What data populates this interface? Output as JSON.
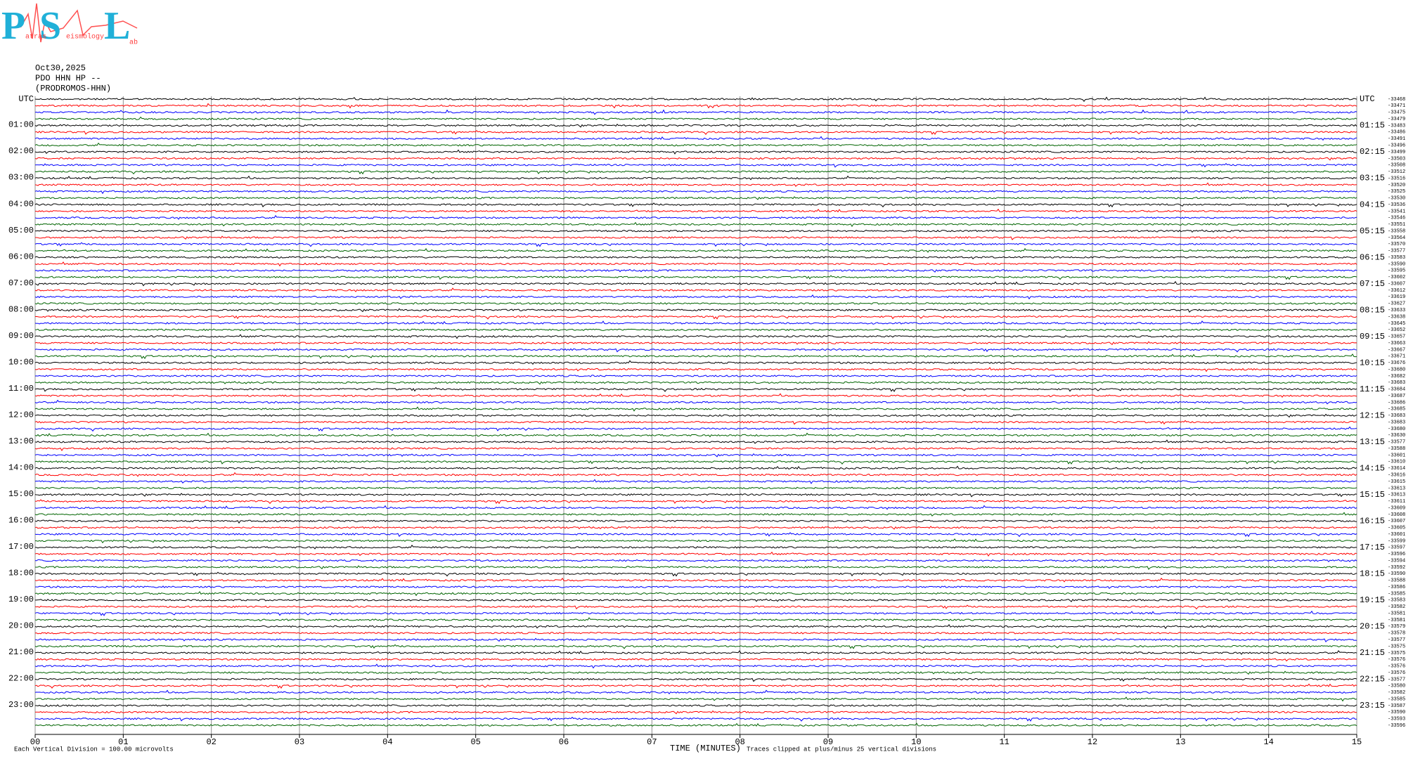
{
  "chart_data": {
    "type": "helicorder",
    "logo": {
      "letters": [
        "P",
        "S",
        "L"
      ],
      "words": [
        "atras",
        "eismology",
        "ab"
      ]
    },
    "header": [
      "Oct30,2025",
      "PDO HHN HP --",
      "(PRODROMOS-HHN)"
    ],
    "left_labels": [
      "UTC",
      "01:00",
      "02:00",
      "03:00",
      "04:00",
      "05:00",
      "06:00",
      "07:00",
      "08:00",
      "09:00",
      "10:00",
      "11:00",
      "12:00",
      "13:00",
      "14:00",
      "15:00",
      "16:00",
      "17:00",
      "18:00",
      "19:00",
      "20:00",
      "21:00",
      "22:00",
      "23:00"
    ],
    "right_labels": [
      "UTC",
      "01:15",
      "02:15",
      "03:15",
      "04:15",
      "05:15",
      "06:15",
      "07:15",
      "08:15",
      "09:15",
      "10:15",
      "11:15",
      "12:15",
      "13:15",
      "14:15",
      "15:15",
      "16:15",
      "17:15",
      "18:15",
      "19:15",
      "20:15",
      "21:15",
      "22:15",
      "23:15"
    ],
    "trace_offsets": [
      "-33468",
      "-33471",
      "-33475",
      "-33479",
      "-33483",
      "-33486",
      "-33491",
      "-33496",
      "-33499",
      "-33503",
      "-33508",
      "-33512",
      "-33516",
      "-33520",
      "-33525",
      "-33530",
      "-33536",
      "-33541",
      "-33546",
      "-33551",
      "-33558",
      "-33564",
      "-33570",
      "-33577",
      "-33583",
      "-33590",
      "-33595",
      "-33602",
      "-33607",
      "-33612",
      "-33619",
      "-33627",
      "-33633",
      "-33638",
      "-33645",
      "-33652",
      "-33657",
      "-33663",
      "-33667",
      "-33671",
      "-33676",
      "-33680",
      "-33682",
      "-33683",
      "-33684",
      "-33687",
      "-33686",
      "-33685",
      "-33683",
      "-33683",
      "-33680",
      "-33630",
      "-33577",
      "-33588",
      "-33601",
      "-33610",
      "-33614",
      "-33616",
      "-33615",
      "-33613",
      "-33613",
      "-33611",
      "-33609",
      "-33608",
      "-33607",
      "-33605",
      "-33601",
      "-33599",
      "-33597",
      "-33596",
      "-33594",
      "-33592",
      "-33590",
      "-33588",
      "-33586",
      "-33585",
      "-33583",
      "-33582",
      "-33581",
      "-33581",
      "-33579",
      "-33578",
      "-33577",
      "-33575",
      "-33575",
      "-33576",
      "-33576",
      "-33576",
      "-33577",
      "-33580",
      "-33582",
      "-33585",
      "-33587",
      "-33590",
      "-33593",
      "-33596"
    ],
    "trace_colors": [
      "#000000",
      "#ff0000",
      "#0000ff",
      "#006400"
    ],
    "xlim": [
      0,
      15
    ],
    "xticks": [
      {
        "value": 0,
        "label": "00"
      },
      {
        "value": 1,
        "label": "01"
      },
      {
        "value": 2,
        "label": "02"
      },
      {
        "value": 3,
        "label": "03"
      },
      {
        "value": 4,
        "label": "04"
      },
      {
        "value": 5,
        "label": "05"
      },
      {
        "value": 6,
        "label": "06"
      },
      {
        "value": 7,
        "label": "07"
      },
      {
        "value": 8,
        "label": "08"
      },
      {
        "value": 9,
        "label": "09"
      },
      10,
      11,
      12,
      13,
      14,
      15
    ],
    "x_label": "TIME (MINUTES)",
    "clip_note": "Traces clipped at plus/minus 25 vertical divisions",
    "scale_note": "Each Vertical Division =  100.00 microvolts",
    "grid": true
  }
}
